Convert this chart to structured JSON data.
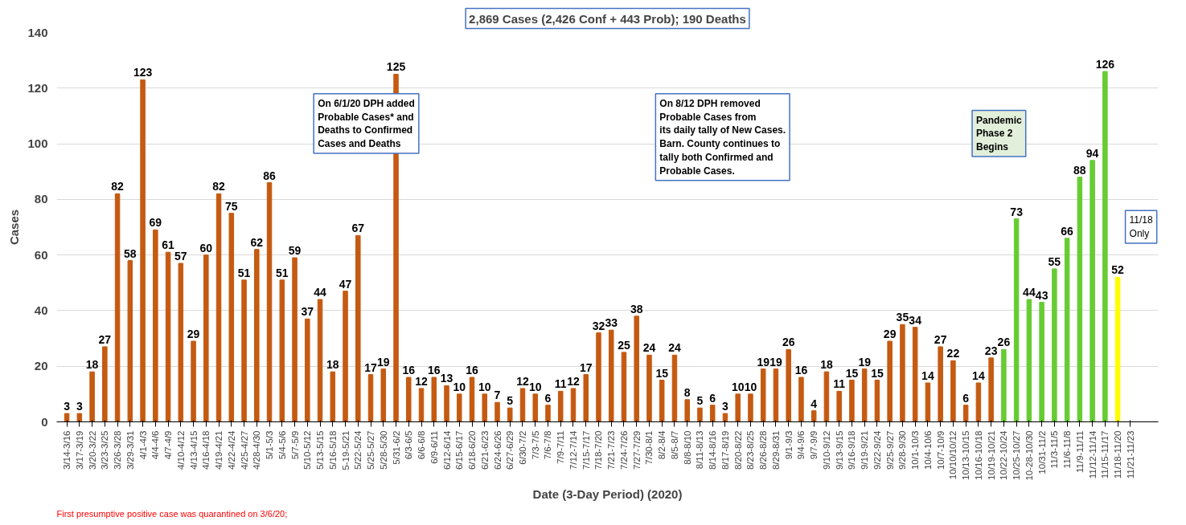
{
  "chart_data": {
    "type": "bar",
    "title": "2,869 Cases (2,426 Conf + 443 Prob); 190 Deaths",
    "xlabel": "Date (3-Day Period) (2020)",
    "ylabel": "Cases",
    "categories": [
      "3/14-3/16",
      "3/17-3/19",
      "3/20-3/22",
      "3/23-3/25",
      "3/26-3/28",
      "3/29-3/31",
      "4/1-4/3",
      "4/4-4/6",
      "4/7-4/9",
      "4/10-4/12",
      "4/13-4/15",
      "4/16-4/18",
      "4/19-4/21",
      "4/22-4/24",
      "4/25-4/27",
      "4/28-4/30",
      "5/1-5/3",
      "5/4-5/6",
      "5/7-5/9",
      "5/10-5/12",
      "5/13-5/15",
      "5/16-5/18",
      "5-19-5/21",
      "5/22-5/24",
      "5/25-5/27",
      "5/28-5/30",
      "5/31-6/2",
      "6/3-6/5",
      "6/6-6/8",
      "6/9-6/11",
      "6/12-6/14",
      "6/15-6/17",
      "6/18-6/20",
      "6/21-6/23",
      "6/24-6/26",
      "6/27-6/29",
      "6/30-7/2",
      "7/3-7/5",
      "7/6-7/8",
      "7/9-7/11",
      "7/12-7/14",
      "7/15-7/17",
      "7/18-7/20",
      "7/21-7/23",
      "7/24-7/26",
      "7/27-7/29",
      "7/30-8/1",
      "8/2-8/4",
      "8/5-8/7",
      "8/8-8/10",
      "8/11-8/13",
      "8/14-8/16",
      "8/17-8/19",
      "8/20-8/22",
      "8/23-8/25",
      "8/26-8/28",
      "8/29-8/31",
      "9/1-9/3",
      "9/4-9/6",
      "9/7-9/9",
      "9/10-9/12",
      "9/13-9/15",
      "9/16-9/18",
      "9/19-9/21",
      "9/22-9/24",
      "9/25-9/27",
      "9/28-9/30",
      "10/1-10/3",
      "10/4-10/6",
      "10/7-10/9",
      "10/10/10/12",
      "10/13-10/15",
      "10/16-10/18",
      "10/19-10/21",
      "10/22-10/24",
      "10/25-10/27",
      "10-28-10/30",
      "10/31-11/2",
      "11/3-11/5",
      "11/6-11/8",
      "11/9-11/11",
      "11/12-11/14",
      "11/15-11/17",
      "11/18-11/20",
      "11/21-11/23"
    ],
    "values": [
      3,
      3,
      18,
      27,
      82,
      58,
      123,
      69,
      61,
      57,
      29,
      60,
      82,
      75,
      51,
      62,
      86,
      51,
      59,
      37,
      44,
      18,
      47,
      67,
      17,
      19,
      125,
      16,
      12,
      16,
      13,
      10,
      16,
      10,
      7,
      5,
      12,
      10,
      6,
      11,
      12,
      17,
      32,
      33,
      25,
      38,
      24,
      15,
      24,
      8,
      5,
      6,
      3,
      10,
      10,
      19,
      19,
      26,
      16,
      4,
      18,
      11,
      15,
      19,
      15,
      29,
      35,
      34,
      14,
      27,
      22,
      6,
      14,
      23,
      26,
      73,
      44,
      43,
      55,
      66,
      88,
      94,
      126,
      52,
      null
    ],
    "colors": [
      "#c55a11",
      "#c55a11",
      "#c55a11",
      "#c55a11",
      "#c55a11",
      "#c55a11",
      "#c55a11",
      "#c55a11",
      "#c55a11",
      "#c55a11",
      "#c55a11",
      "#c55a11",
      "#c55a11",
      "#c55a11",
      "#c55a11",
      "#c55a11",
      "#c55a11",
      "#c55a11",
      "#c55a11",
      "#c55a11",
      "#c55a11",
      "#c55a11",
      "#c55a11",
      "#c55a11",
      "#c55a11",
      "#c55a11",
      "#c55a11",
      "#c55a11",
      "#c55a11",
      "#c55a11",
      "#c55a11",
      "#c55a11",
      "#c55a11",
      "#c55a11",
      "#c55a11",
      "#c55a11",
      "#c55a11",
      "#c55a11",
      "#c55a11",
      "#c55a11",
      "#c55a11",
      "#c55a11",
      "#c55a11",
      "#c55a11",
      "#c55a11",
      "#c55a11",
      "#c55a11",
      "#c55a11",
      "#c55a11",
      "#c55a11",
      "#c55a11",
      "#c55a11",
      "#c55a11",
      "#c55a11",
      "#c55a11",
      "#c55a11",
      "#c55a11",
      "#c55a11",
      "#c55a11",
      "#c55a11",
      "#c55a11",
      "#c55a11",
      "#c55a11",
      "#c55a11",
      "#c55a11",
      "#c55a11",
      "#c55a11",
      "#c55a11",
      "#c55a11",
      "#c55a11",
      "#c55a11",
      "#c55a11",
      "#c55a11",
      "#c55a11",
      "#66cc33",
      "#66cc33",
      "#66cc33",
      "#66cc33",
      "#66cc33",
      "#66cc33",
      "#66cc33",
      "#66cc33",
      "#66cc33",
      "#ffff00",
      "#ffff00"
    ],
    "ylim": [
      0,
      140
    ],
    "yticks": [
      0,
      20,
      40,
      60,
      80,
      100,
      120,
      140
    ],
    "grid": "y",
    "data_labels": true,
    "annotations": [
      "On 6/1/20 DPH added\nProbable Cases* and\nDeaths to Confirmed\nCases and Deaths",
      "On 8/12 DPH removed\nProbable Cases from\nits daily tally of New Cases.\nBarn. County continues to\ntally both Confirmed and\nProbable Cases.",
      "Pandemic\nPhase 2\nBegins",
      "11/18\nOnly",
      "First presumptive positive case was quarantined on 3/6/20;"
    ]
  }
}
